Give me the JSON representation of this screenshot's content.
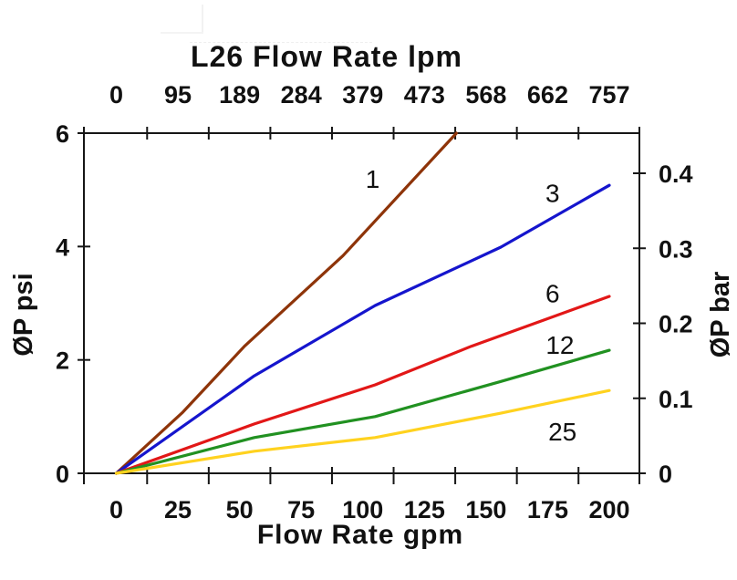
{
  "chart_data": {
    "type": "line",
    "title": "L26 Flow Rate lpm",
    "xlabel": "Flow Rate gpm",
    "ylabel_left": "ØP psi",
    "ylabel_right": "ØP bar",
    "axis_color": "#161616",
    "background": "#ffffff",
    "xlim_gpm": [
      0,
      200
    ],
    "ylim_psi": [
      0,
      6
    ],
    "ylim_bar_top": 0.45,
    "x_tick_labels_gpm": [
      0,
      25,
      50,
      75,
      100,
      125,
      150,
      175,
      200
    ],
    "top_tick_labels_lpm": [
      0,
      95,
      189,
      284,
      379,
      473,
      568,
      662,
      757
    ],
    "yticks_left_psi": [
      0,
      2,
      4,
      6
    ],
    "yticks_right_bar": [
      0,
      0.1,
      0.2,
      0.3,
      0.4
    ],
    "grid": false,
    "legend": "inline-curve-labels",
    "series": [
      {
        "name": "1",
        "color": "#8E3409",
        "label_pos_gpm_psi": [
          104,
          5.18
        ],
        "points_gpm_psi": [
          [
            0,
            0
          ],
          [
            27,
            1.08
          ],
          [
            52,
            2.24
          ],
          [
            92,
            3.84
          ],
          [
            138,
            6.0
          ]
        ]
      },
      {
        "name": "3",
        "color": "#1515CD",
        "label_pos_gpm_psi": [
          177,
          4.93
        ],
        "points_gpm_psi": [
          [
            0,
            0
          ],
          [
            56,
            1.72
          ],
          [
            105,
            2.96
          ],
          [
            156,
            3.99
          ],
          [
            200,
            5.08
          ]
        ]
      },
      {
        "name": "6",
        "color": "#E21717",
        "label_pos_gpm_psi": [
          177,
          3.16
        ],
        "points_gpm_psi": [
          [
            0,
            0
          ],
          [
            56,
            0.87
          ],
          [
            105,
            1.56
          ],
          [
            144,
            2.24
          ],
          [
            200,
            3.12
          ]
        ]
      },
      {
        "name": "12",
        "color": "#219121",
        "label_pos_gpm_psi": [
          180,
          2.25
        ],
        "points_gpm_psi": [
          [
            0,
            0
          ],
          [
            56,
            0.63
          ],
          [
            105,
            1.0
          ],
          [
            156,
            1.62
          ],
          [
            200,
            2.17
          ]
        ]
      },
      {
        "name": "25",
        "color": "#FFD21F",
        "label_pos_gpm_psi": [
          181,
          0.72
        ],
        "points_gpm_psi": [
          [
            0,
            0
          ],
          [
            56,
            0.39
          ],
          [
            105,
            0.63
          ],
          [
            156,
            1.06
          ],
          [
            200,
            1.46
          ]
        ]
      }
    ]
  }
}
